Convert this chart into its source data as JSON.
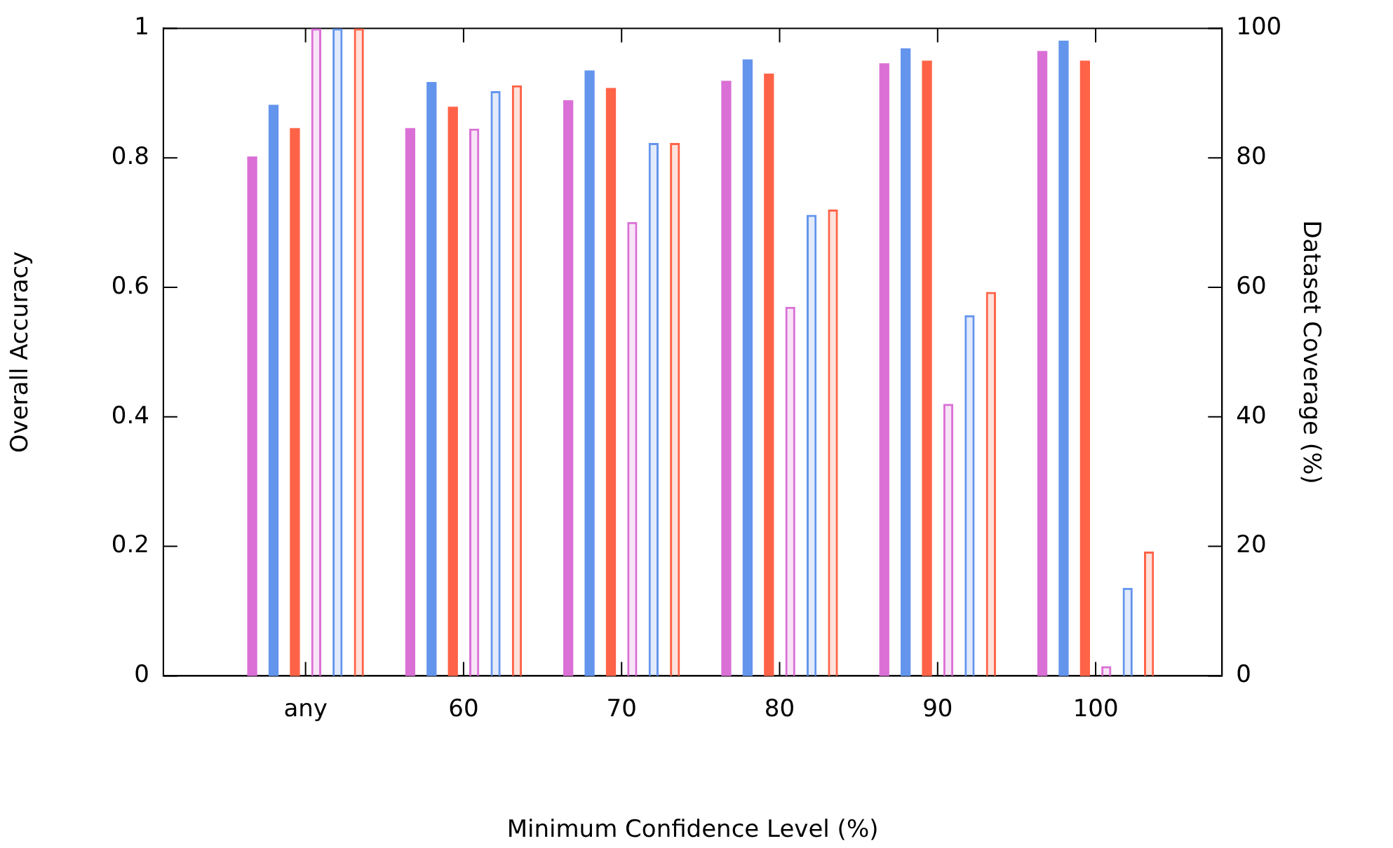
{
  "chart_data": {
    "type": "bar",
    "xlabel": "Minimum Confidence Level (%)",
    "ylabel": "Overall Accuracy",
    "y2label": "Dataset Coverage (%)",
    "categories": [
      "any",
      "60",
      "70",
      "80",
      "90",
      "100"
    ],
    "series": [
      {
        "color": "#da70d6",
        "values": [
          0.802,
          0.846,
          0.889,
          0.919,
          0.946,
          0.965
        ]
      },
      {
        "color": "#6495ed",
        "values": [
          0.882,
          0.917,
          0.935,
          0.952,
          0.969,
          0.981
        ]
      },
      {
        "color": "#ff6347",
        "values": [
          0.846,
          0.879,
          0.908,
          0.93,
          0.95,
          0.95
        ]
      },
      {
        "color": "#da70d6",
        "axis": "y2",
        "values": [
          100,
          84.5,
          70.1,
          57,
          42,
          1.5
        ]
      },
      {
        "color": "#6495ed",
        "axis": "y2",
        "values": [
          100,
          90.3,
          82.3,
          71.2,
          55.7,
          13.6
        ]
      },
      {
        "color": "#ff6347",
        "axis": "y2",
        "values": [
          100,
          91.2,
          82.3,
          72,
          59.3,
          19.2
        ]
      }
    ],
    "ylim": [
      0,
      1
    ],
    "yticks": [
      0,
      0.2,
      0.4,
      0.6,
      0.8,
      1
    ],
    "y2lim": [
      0,
      100
    ],
    "y2ticks": [
      0,
      20,
      40,
      60,
      80,
      100
    ],
    "grid": false,
    "legend": false
  }
}
